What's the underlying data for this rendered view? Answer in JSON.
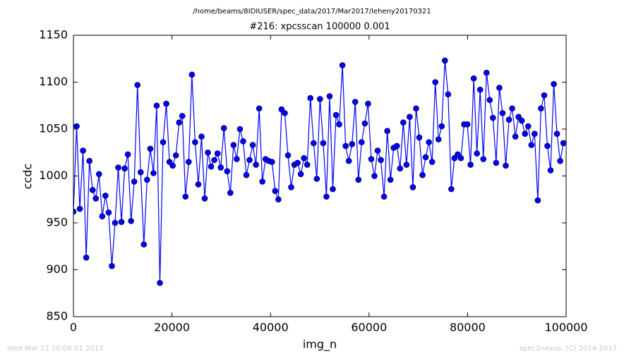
{
  "chart_data": {
    "type": "line",
    "suptitle": "/home/beams/8IDIUSER/spec_data/2017/Mar2017/leheny20170321",
    "title": "#216: xpcsscan 100000 0.001",
    "xlabel": "img_n",
    "ylabel": "ccdc",
    "footer_left": "Wed Mar 22 20:08:01 2017",
    "footer_right": "spec2nexus, (C) 2014-2017",
    "xlim": [
      0,
      100000
    ],
    "xticks": [
      0,
      20000,
      40000,
      60000,
      80000,
      100000
    ],
    "ylim": [
      850,
      1150
    ],
    "yticks": [
      850,
      900,
      950,
      1000,
      1050,
      1100,
      1150
    ],
    "x": [
      0,
      650,
      1300,
      1950,
      2600,
      3250,
      3900,
      4550,
      5200,
      5850,
      6500,
      7150,
      7800,
      8450,
      9100,
      9750,
      10400,
      11050,
      11700,
      12350,
      13000,
      13650,
      14300,
      14950,
      15600,
      16250,
      16900,
      17550,
      18200,
      18850,
      19500,
      20150,
      20800,
      21450,
      22100,
      22750,
      23400,
      24050,
      24700,
      25350,
      26000,
      26650,
      27300,
      27950,
      28600,
      29250,
      29900,
      30550,
      31200,
      31850,
      32500,
      33150,
      33800,
      34450,
      35100,
      35750,
      36400,
      37050,
      37700,
      38350,
      39000,
      39650,
      40300,
      40950,
      41600,
      42250,
      42900,
      43550,
      44200,
      44850,
      45500,
      46150,
      46800,
      47450,
      48100,
      48750,
      49400,
      50050,
      50700,
      51350,
      52000,
      52650,
      53300,
      53950,
      54600,
      55250,
      55900,
      56550,
      57200,
      57850,
      58500,
      59150,
      59800,
      60450,
      61100,
      61750,
      62400,
      63050,
      63700,
      64350,
      65000,
      65650,
      66300,
      66950,
      67600,
      68250,
      68900,
      69550,
      70200,
      70850,
      71500,
      72150,
      72800,
      73450,
      74100,
      74750,
      75400,
      76050,
      76700,
      77350,
      78000,
      78650,
      79300,
      79950,
      80600,
      81250,
      81900,
      82550,
      83200,
      83850,
      84500,
      85150,
      85800,
      86450,
      87100,
      87750,
      88400,
      89050,
      89700,
      90350,
      91000,
      91650,
      92300,
      92950,
      93600,
      94250,
      94900,
      95550,
      96200,
      96850,
      97500,
      98150,
      98800,
      99450
    ],
    "series": [
      {
        "color": "#0000ff",
        "values": [
          962,
          1053,
          965,
          1027,
          913,
          1016,
          985,
          976,
          1002,
          957,
          979,
          961,
          904,
          950,
          1009,
          951,
          1008,
          1023,
          952,
          994,
          1097,
          1004,
          927,
          996,
          1029,
          1003,
          1075,
          886,
          1036,
          1077,
          1015,
          1011,
          1022,
          1057,
          1064,
          978,
          1015,
          1108,
          1036,
          991,
          1042,
          976,
          1025,
          1010,
          1017,
          1024,
          1009,
          1051,
          1005,
          982,
          1033,
          1018,
          1050,
          1037,
          1001,
          1017,
          1033,
          1012,
          1072,
          994,
          1018,
          1016,
          1015,
          984,
          975,
          1071,
          1067,
          1022,
          988,
          1012,
          1014,
          1002,
          1019,
          1012,
          1083,
          1035,
          997,
          1082,
          1035,
          978,
          1085,
          986,
          1065,
          1055,
          1118,
          1032,
          1016,
          1034,
          1079,
          996,
          1036,
          1056,
          1077,
          1018,
          1000,
          1027,
          1017,
          978,
          1048,
          996,
          1030,
          1032,
          1008,
          1057,
          1012,
          1063,
          988,
          1072,
          1041,
          1001,
          1020,
          1036,
          1015,
          1100,
          1039,
          1053,
          1123,
          1087,
          986,
          1019,
          1023,
          1019,
          1055,
          1055,
          1012,
          1104,
          1024,
          1092,
          1018,
          1110,
          1081,
          1062,
          1014,
          1094,
          1067,
          1011,
          1060,
          1072,
          1042,
          1063,
          1059,
          1045,
          1053,
          1033,
          1045,
          974,
          1072,
          1086,
          1032,
          1006,
          1098,
          1045,
          1016,
          1035
        ]
      }
    ]
  }
}
